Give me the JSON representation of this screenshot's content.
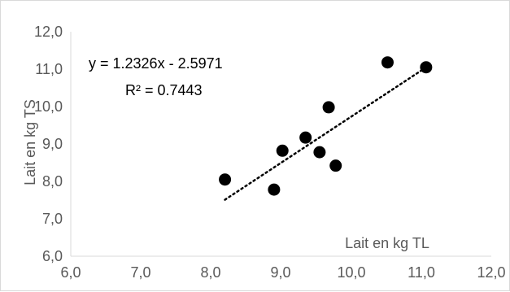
{
  "chart_data": {
    "type": "scatter",
    "title": "",
    "xlabel": "Lait en kg TL",
    "ylabel": "Lait en kg TS",
    "xlim": [
      6.0,
      12.0
    ],
    "ylim": [
      6.0,
      12.0
    ],
    "x_ticks": [
      "6,0",
      "7,0",
      "8,0",
      "9,0",
      "10,0",
      "11,0",
      "12,0"
    ],
    "y_ticks": [
      "6,0",
      "7,0",
      "8,0",
      "9,0",
      "10,0",
      "11,0",
      "12,0"
    ],
    "grid": false,
    "series": [
      {
        "points": [
          {
            "x": 8.2,
            "y": 8.05
          },
          {
            "x": 8.9,
            "y": 7.78
          },
          {
            "x": 9.02,
            "y": 8.82
          },
          {
            "x": 9.35,
            "y": 9.17
          },
          {
            "x": 9.55,
            "y": 8.78
          },
          {
            "x": 9.68,
            "y": 9.98
          },
          {
            "x": 9.78,
            "y": 8.42
          },
          {
            "x": 10.52,
            "y": 11.18
          },
          {
            "x": 11.07,
            "y": 11.05
          }
        ],
        "color": "#000000"
      }
    ],
    "trendline": {
      "type": "linear",
      "slope": 1.2326,
      "intercept": -2.5971,
      "x_range": [
        8.2,
        11.07
      ],
      "equation_label": "y = 1.2326x - 2.5971",
      "r2_label": "R² = 0.7443",
      "style": "dotted",
      "color": "#000000"
    }
  }
}
